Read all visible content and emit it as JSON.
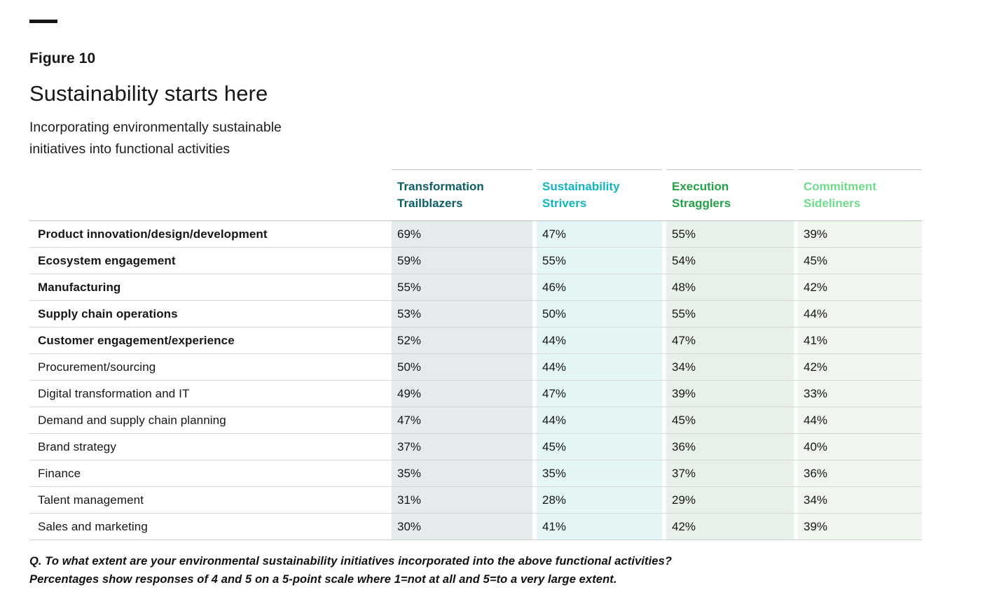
{
  "figure": {
    "label": "Figure 10",
    "title": "Sustainability starts here",
    "subtitle_lines": [
      "Incorporating environmentally sustainable",
      "initiatives into functional activities"
    ]
  },
  "table": {
    "columns": [
      {
        "label": "Transformation Trailblazers",
        "color": "#0b5d66",
        "tint": "#e5ebec"
      },
      {
        "label": "Sustainability Strivers",
        "color": "#0fb5c0",
        "tint": "#e3f5f4"
      },
      {
        "label": "Execution Stragglers",
        "color": "#24a148",
        "tint": "#e8f1e9"
      },
      {
        "label": "Commitment Sideliners",
        "color": "#6fdc8c",
        "tint": "#eef6ee"
      }
    ],
    "rows": [
      {
        "label": "Product innovation/design/development",
        "bold": true,
        "values": [
          "69%",
          "47%",
          "55%",
          "39%"
        ]
      },
      {
        "label": "Ecosystem engagement",
        "bold": true,
        "values": [
          "59%",
          "55%",
          "54%",
          "45%"
        ]
      },
      {
        "label": "Manufacturing",
        "bold": true,
        "values": [
          "55%",
          "46%",
          "48%",
          "42%"
        ]
      },
      {
        "label": "Supply chain operations",
        "bold": true,
        "values": [
          "53%",
          "50%",
          "55%",
          "44%"
        ]
      },
      {
        "label": "Customer engagement/experience",
        "bold": true,
        "values": [
          "52%",
          "44%",
          "47%",
          "41%"
        ]
      },
      {
        "label": "Procurement/sourcing",
        "bold": false,
        "values": [
          "50%",
          "44%",
          "34%",
          "42%"
        ]
      },
      {
        "label": "Digital transformation and IT",
        "bold": false,
        "values": [
          "49%",
          "47%",
          "39%",
          "33%"
        ]
      },
      {
        "label": "Demand and supply chain planning",
        "bold": false,
        "values": [
          "47%",
          "44%",
          "45%",
          "44%"
        ]
      },
      {
        "label": "Brand strategy",
        "bold": false,
        "values": [
          "37%",
          "45%",
          "36%",
          "40%"
        ]
      },
      {
        "label": "Finance",
        "bold": false,
        "values": [
          "35%",
          "35%",
          "37%",
          "36%"
        ]
      },
      {
        "label": "Talent management",
        "bold": false,
        "values": [
          "31%",
          "28%",
          "29%",
          "34%"
        ]
      },
      {
        "label": "Sales and marketing",
        "bold": false,
        "values": [
          "30%",
          "41%",
          "42%",
          "39%"
        ]
      }
    ]
  },
  "footnote_lines": [
    "Q. To what extent are your environmental sustainability initiatives incorporated into the above functional activities?",
    "Percentages show responses of 4 and 5 on a 5-point scale where 1=not at all and 5=to a very large extent."
  ],
  "chart_data": {
    "type": "table",
    "figure_label": "Figure 10",
    "title": "Sustainability starts here",
    "subtitle": "Incorporating environmentally sustainable initiatives into functional activities",
    "value_format": "percent",
    "categories": [
      "Product innovation/design/development",
      "Ecosystem engagement",
      "Manufacturing",
      "Supply chain operations",
      "Customer engagement/experience",
      "Procurement/sourcing",
      "Digital transformation and IT",
      "Demand and supply chain planning",
      "Brand strategy",
      "Finance",
      "Talent management",
      "Sales and marketing"
    ],
    "series": [
      {
        "name": "Transformation Trailblazers",
        "values": [
          69,
          59,
          55,
          53,
          52,
          50,
          49,
          47,
          37,
          35,
          31,
          30
        ]
      },
      {
        "name": "Sustainability Strivers",
        "values": [
          47,
          55,
          46,
          50,
          44,
          44,
          47,
          44,
          45,
          35,
          28,
          41
        ]
      },
      {
        "name": "Execution Stragglers",
        "values": [
          55,
          54,
          48,
          55,
          47,
          34,
          39,
          45,
          36,
          37,
          29,
          42
        ]
      },
      {
        "name": "Commitment Sideliners",
        "values": [
          39,
          45,
          42,
          44,
          41,
          42,
          33,
          44,
          40,
          36,
          34,
          39
        ]
      }
    ],
    "annotations": [
      "Q. To what extent are your environmental sustainability initiatives incorporated into the above functional activities?",
      "Percentages show responses of 4 and 5 on a 5-point scale where 1=not at all and 5=to a very large extent."
    ]
  }
}
